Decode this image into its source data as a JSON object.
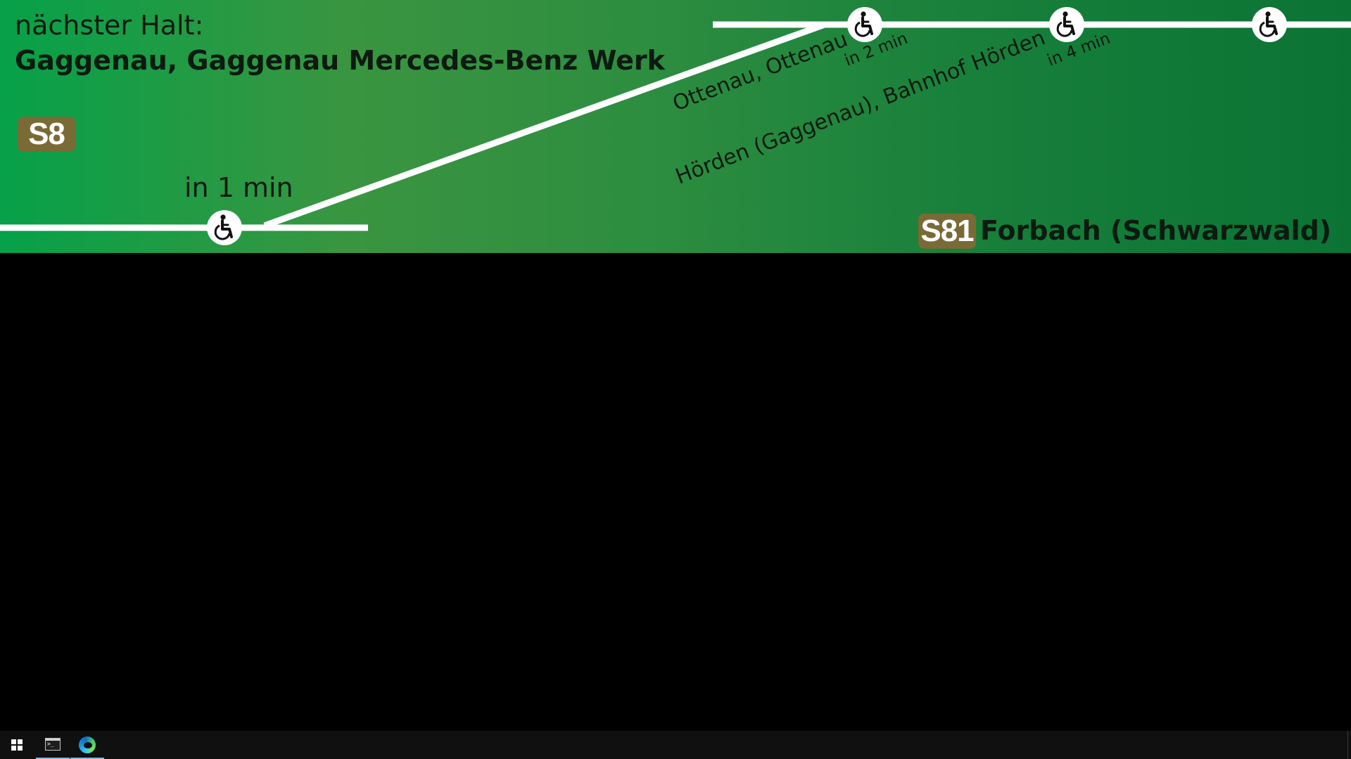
{
  "display": {
    "next_stop_label": "nächster Halt:",
    "next_stop_name": "Gaggenau, Gaggenau Mercedes-Benz Werk",
    "current_line": "S8",
    "first_stop_time": "in 1 min",
    "stops": [
      {
        "name": "Ottenau, Ottenau",
        "time": "in 2 min"
      },
      {
        "name": "Hörden (Gaggenau), Bahnhof Hörden",
        "time": "in 4 min"
      }
    ],
    "destination_line": "S81",
    "destination": "Forbach (Schwarzwald)",
    "colors": {
      "background_left": "#06a149",
      "background_right": "#0b7334",
      "line_badge": "#7a6a35",
      "route_line": "#ffffff"
    },
    "stop_icon": "wheelchair-icon"
  },
  "taskbar": {
    "items": [
      {
        "icon": "windows-start-icon"
      },
      {
        "icon": "terminal-icon"
      },
      {
        "icon": "edge-browser-icon"
      }
    ]
  }
}
